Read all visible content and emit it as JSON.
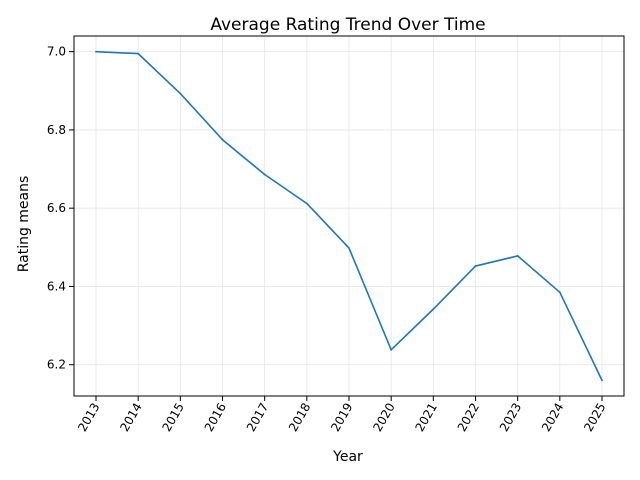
{
  "chart_data": {
    "type": "line",
    "title": "Average Rating Trend Over Time",
    "xlabel": "Year",
    "ylabel": "Rating means",
    "categories": [
      "2013",
      "2014",
      "2015",
      "2016",
      "2017",
      "2018",
      "2019",
      "2020",
      "2021",
      "2022",
      "2023",
      "2024",
      "2025"
    ],
    "series": [
      {
        "values": [
          7.0,
          6.995,
          6.893,
          6.775,
          6.686,
          6.612,
          6.498,
          6.238,
          6.342,
          6.452,
          6.478,
          6.385,
          6.16
        ],
        "color": "#1f77b4"
      }
    ],
    "ylim": [
      6.12,
      7.04
    ],
    "yticks": [
      6.2,
      6.4,
      6.6,
      6.8,
      7.0
    ],
    "ytick_labels": [
      "6.2",
      "6.4",
      "6.6",
      "6.8",
      "7.0"
    ],
    "grid": true,
    "legend": "none"
  }
}
